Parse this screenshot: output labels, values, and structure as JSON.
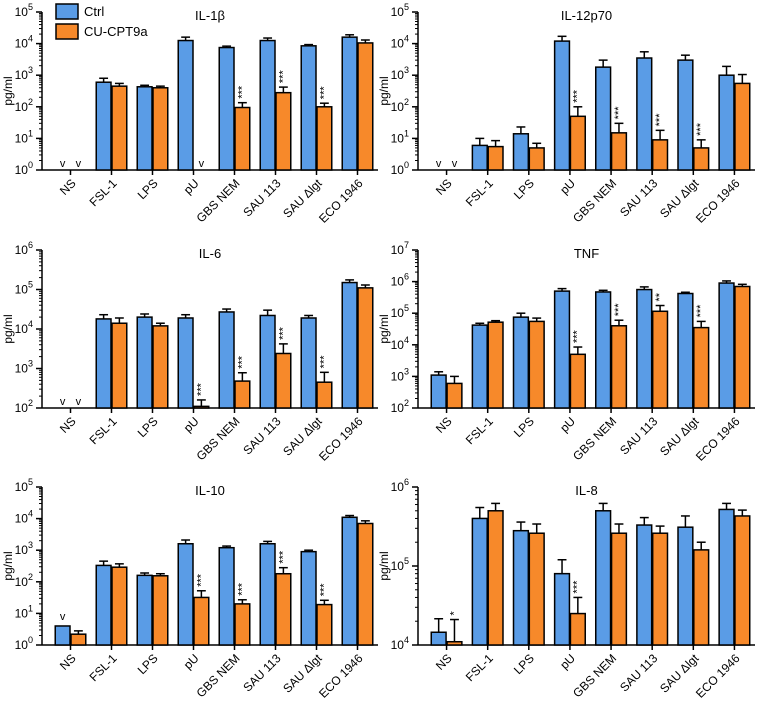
{
  "legend": [
    {
      "name": "Ctrl",
      "color": "#5a9ce6"
    },
    {
      "name": "CU-CPT9a",
      "color": "#f7892a"
    }
  ],
  "categories": [
    "NS",
    "FSL-1",
    "LPS",
    "pU",
    "GBS NEM",
    "SAU 113",
    "SAU Δlgt",
    "ECO 1946"
  ],
  "chart_data": [
    {
      "type": "bar",
      "title": "IL-1β",
      "ylabel": "pg/ml",
      "scale": "log",
      "ylim_exp": [
        0,
        5
      ],
      "series": [
        {
          "name": "Ctrl",
          "values": [
            null,
            600,
            430,
            12500,
            7500,
            12500,
            8500,
            16000
          ],
          "errors": [
            0,
            200,
            50,
            3500,
            800,
            2500,
            800,
            3000
          ],
          "nd": [
            true,
            false,
            false,
            false,
            false,
            false,
            false,
            false
          ]
        },
        {
          "name": "CU-CPT9a",
          "values": [
            null,
            450,
            400,
            null,
            95,
            280,
            100,
            10500
          ],
          "errors": [
            0,
            100,
            50,
            0,
            40,
            140,
            30,
            2500
          ],
          "nd": [
            true,
            false,
            false,
            true,
            false,
            false,
            false,
            false
          ]
        }
      ],
      "stars": [
        "",
        "",
        "",
        "",
        "***",
        "***",
        "***",
        ""
      ]
    },
    {
      "type": "bar",
      "title": "IL-12p70",
      "ylabel": "pg/ml",
      "scale": "log",
      "ylim_exp": [
        0,
        5
      ],
      "series": [
        {
          "name": "Ctrl",
          "values": [
            null,
            6,
            14,
            12000,
            1800,
            3500,
            3000,
            1000
          ],
          "errors": [
            0,
            4,
            9,
            5000,
            1200,
            2000,
            1300,
            900
          ],
          "nd": [
            true,
            false,
            false,
            false,
            false,
            false,
            false,
            false
          ]
        },
        {
          "name": "CU-CPT9a",
          "values": [
            null,
            5.5,
            5,
            50,
            15,
            9,
            5,
            550
          ],
          "errors": [
            0,
            3,
            2,
            50,
            15,
            9,
            4,
            500
          ],
          "nd": [
            true,
            false,
            false,
            false,
            false,
            false,
            false,
            false
          ]
        }
      ],
      "stars": [
        "",
        "",
        "",
        "***",
        "***",
        "***",
        "***",
        ""
      ]
    },
    {
      "type": "bar",
      "title": "IL-6",
      "ylabel": "pg/ml",
      "scale": "log",
      "ylim_exp": [
        2,
        6
      ],
      "series": [
        {
          "name": "Ctrl",
          "values": [
            null,
            18000,
            20000,
            19000,
            27000,
            22000,
            19000,
            150000
          ],
          "errors": [
            0,
            5000,
            4000,
            4000,
            5000,
            8000,
            3000,
            25000
          ],
          "nd": [
            true,
            false,
            false,
            false,
            false,
            false,
            false,
            false
          ]
        },
        {
          "name": "CU-CPT9a",
          "values": [
            null,
            14000,
            12000,
            110,
            480,
            2400,
            450,
            110000
          ],
          "errors": [
            0,
            5000,
            2000,
            50,
            300,
            1800,
            350,
            20000
          ],
          "nd": [
            true,
            false,
            false,
            false,
            false,
            false,
            false,
            false
          ]
        }
      ],
      "stars": [
        "",
        "",
        "",
        "***",
        "***",
        "***",
        "***",
        ""
      ]
    },
    {
      "type": "bar",
      "title": "TNF",
      "ylabel": "pg/ml",
      "scale": "log",
      "ylim_exp": [
        2,
        7
      ],
      "series": [
        {
          "name": "Ctrl",
          "values": [
            1100,
            42000,
            75000,
            500000,
            470000,
            560000,
            420000,
            900000
          ],
          "errors": [
            300,
            6000,
            25000,
            100000,
            60000,
            120000,
            40000,
            150000
          ],
          "nd": [
            false,
            false,
            false,
            false,
            false,
            false,
            false,
            false
          ]
        },
        {
          "name": "CU-CPT9a",
          "values": [
            600,
            52000,
            55000,
            5000,
            40000,
            115000,
            35000,
            700000
          ],
          "errors": [
            400,
            6000,
            15000,
            3500,
            20000,
            60000,
            20000,
            120000
          ],
          "nd": [
            false,
            false,
            false,
            false,
            false,
            false,
            false,
            false
          ]
        }
      ],
      "stars": [
        "",
        "",
        "",
        "***",
        "***",
        "**",
        "***",
        ""
      ]
    },
    {
      "type": "bar",
      "title": "IL-10",
      "ylabel": "pg/ml",
      "scale": "log",
      "ylim_exp": [
        0,
        5
      ],
      "series": [
        {
          "name": "Ctrl",
          "values": [
            4,
            330,
            160,
            1600,
            1200,
            1600,
            900,
            11000
          ],
          "errors": [
            0,
            120,
            30,
            500,
            150,
            300,
            100,
            1500
          ],
          "nd": [
            false,
            false,
            false,
            false,
            false,
            false,
            false,
            false
          ]
        },
        {
          "name": "CU-CPT9a",
          "values": [
            2.2,
            290,
            155,
            32,
            20,
            180,
            19,
            7000
          ],
          "errors": [
            0.6,
            80,
            25,
            20,
            7,
            100,
            7,
            1500
          ],
          "nd": [
            false,
            false,
            false,
            false,
            false,
            false,
            false,
            false
          ]
        }
      ],
      "stars": [
        "v",
        "",
        "",
        "***",
        "***",
        "***",
        "***",
        ""
      ]
    },
    {
      "type": "bar",
      "title": "IL-8",
      "ylabel": "pg/ml",
      "scale": "log",
      "ylim_exp": [
        4,
        6
      ],
      "series": [
        {
          "name": "Ctrl",
          "values": [
            14500,
            400000,
            280000,
            80000,
            500000,
            330000,
            310000,
            520000
          ],
          "errors": [
            7000,
            150000,
            80000,
            40000,
            120000,
            80000,
            120000,
            100000
          ],
          "nd": [
            false,
            false,
            false,
            false,
            false,
            false,
            false,
            false
          ]
        },
        {
          "name": "CU-CPT9a",
          "values": [
            11000,
            500000,
            260000,
            25000,
            260000,
            260000,
            160000,
            430000
          ],
          "errors": [
            10000,
            120000,
            80000,
            15000,
            80000,
            60000,
            40000,
            80000
          ],
          "nd": [
            false,
            false,
            false,
            false,
            false,
            false,
            false,
            false
          ]
        }
      ],
      "stars": [
        "*",
        "",
        "",
        "***",
        "",
        "",
        "",
        ""
      ]
    }
  ]
}
